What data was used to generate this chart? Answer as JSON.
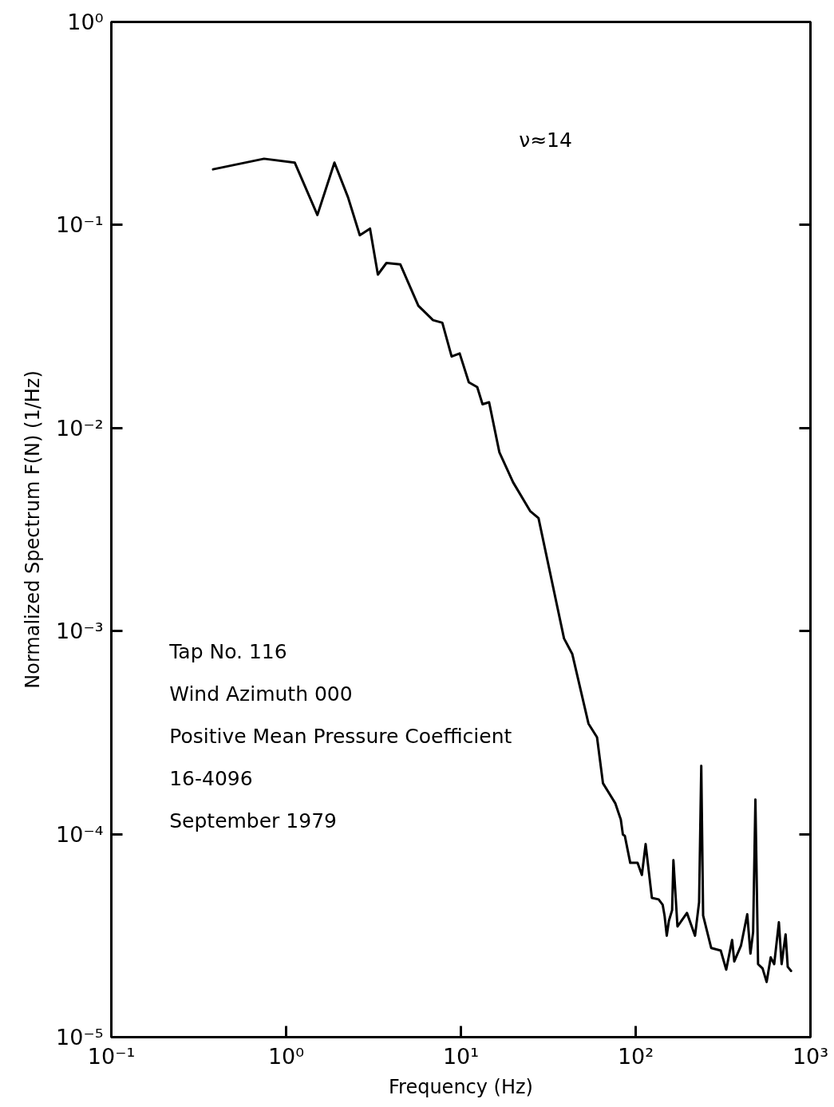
{
  "chart_data": {
    "type": "line",
    "xlabel": "Frequency (Hz)",
    "ylabel": "Normalized Spectrum F(N) (1/Hz)",
    "log": "xy",
    "grid": false,
    "line_style": "solid",
    "xlim": [
      0.1,
      1000
    ],
    "ylim": [
      1e-05,
      1
    ],
    "xticks": [
      {
        "value": 0.1,
        "label": "10⁻¹"
      },
      {
        "value": 1,
        "label": "10⁰"
      },
      {
        "value": 10,
        "label": "10¹"
      },
      {
        "value": 100,
        "label": "10²"
      },
      {
        "value": 1000,
        "label": "10³"
      }
    ],
    "yticks": [
      {
        "value": 1e-05,
        "label": "10⁻⁵"
      },
      {
        "value": 0.0001,
        "label": "10⁻⁴"
      },
      {
        "value": 0.001,
        "label": "10⁻³"
      },
      {
        "value": 0.01,
        "label": "10⁻²"
      },
      {
        "value": 0.1,
        "label": "10⁻¹"
      },
      {
        "value": 1,
        "label": "10⁰"
      }
    ],
    "annotations": [
      "ν≈14",
      "Tap No. 116",
      "Wind Azimuth 000",
      "Positive Mean Pressure Coefficient",
      "16-4096",
      "September 1979"
    ],
    "series": [
      {
        "color": "#000000",
        "x": [
          0.382,
          0.748,
          1.12,
          1.51,
          1.89,
          2.26,
          2.64,
          3.02,
          3.35,
          3.75,
          4.5,
          5.71,
          6.93,
          7.83,
          8.85,
          9.84,
          11.1,
          12.4,
          13.3,
          14.5,
          16.6,
          19.9,
          24.9,
          27.8,
          38.9,
          43.4,
          53.7,
          60.1,
          65.0,
          76.4,
          82.2,
          84.5,
          86.7,
          93.1,
          102.5,
          108.5,
          114,
          123.8,
          135.3,
          142.7,
          146.3,
          150.6,
          154.9,
          161.6,
          164.4,
          173.4,
          196.5,
          218.6,
          230.6,
          237.3,
          243.2,
          270.4,
          306.7,
          329.6,
          356.2,
          366.5,
          400.7,
          434.9,
          453.6,
          469.9,
          484.2,
          501.5,
          532.1,
          561.5,
          592.5,
          620.3,
          659.7,
          683.9,
          720.7,
          741.3,
          774.5
        ],
        "values": [
          0.188,
          0.212,
          0.203,
          0.112,
          0.203,
          0.137,
          0.089,
          0.096,
          0.057,
          0.065,
          0.064,
          0.04,
          0.034,
          0.033,
          0.0225,
          0.0233,
          0.0168,
          0.0159,
          0.0131,
          0.0134,
          0.0076,
          0.0054,
          0.0039,
          0.0036,
          0.00092,
          0.00077,
          0.00035,
          0.0003,
          0.000178,
          0.000142,
          0.000118,
          9.95e-05,
          9.8e-05,
          7.22e-05,
          7.22e-05,
          6.29e-05,
          8.93e-05,
          4.85e-05,
          4.77e-05,
          4.49e-05,
          3.97e-05,
          3.16e-05,
          3.74e-05,
          4.22e-05,
          7.44e-05,
          3.51e-05,
          4.09e-05,
          3.16e-05,
          4.62e-05,
          0.000217,
          3.97e-05,
          2.75e-05,
          2.67e-05,
          2.15e-05,
          3.01e-05,
          2.36e-05,
          2.83e-05,
          4.03e-05,
          2.58e-05,
          3.3e-05,
          0.000148,
          2.29e-05,
          2.18e-05,
          1.87e-05,
          2.47e-05,
          2.29e-05,
          3.68e-05,
          2.29e-05,
          3.21e-05,
          2.22e-05,
          2.12e-05
        ]
      }
    ]
  }
}
